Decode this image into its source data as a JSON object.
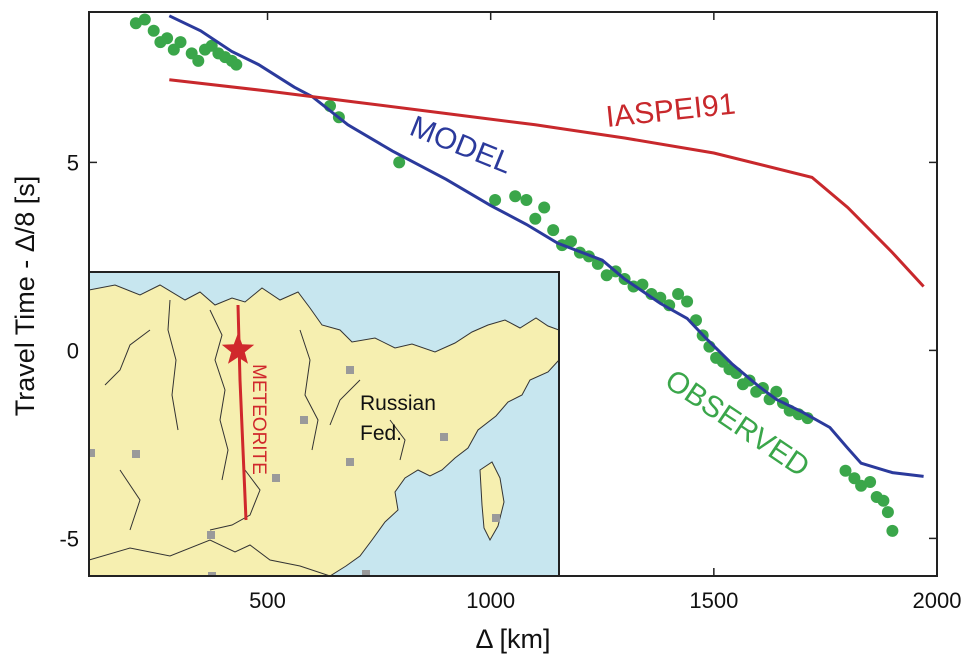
{
  "chart_data": {
    "type": "scatter",
    "xlabel": "Δ [km]",
    "ylabel": "Travel Time - Δ/8  [s]",
    "xlim": [
      100,
      2000
    ],
    "ylim": [
      -6,
      9
    ],
    "x_ticks": [
      500,
      1000,
      1500,
      2000
    ],
    "y_ticks": [
      -5,
      0,
      5
    ],
    "grid": false,
    "colors": {
      "iaspei": "#c8282c",
      "model": "#2b3a9c",
      "observed": "#3aa64a",
      "meteorite": "#d0282c",
      "map_land": "#f6efb0",
      "map_water": "#c7e6ef"
    },
    "series": [
      {
        "name": "IASPEI91",
        "kind": "line",
        "x": [
          280,
          500,
          700,
          900,
          1100,
          1300,
          1500,
          1720,
          1800,
          1900,
          1970
        ],
        "y": [
          7.2,
          6.9,
          6.6,
          6.3,
          6.0,
          5.65,
          5.25,
          4.6,
          3.8,
          2.6,
          1.7
        ]
      },
      {
        "name": "MODEL",
        "kind": "line",
        "x": [
          280,
          350,
          420,
          480,
          560,
          600,
          680,
          780,
          900,
          1000,
          1080,
          1150,
          1250,
          1300,
          1380,
          1440,
          1480,
          1540,
          1600,
          1640,
          1700,
          1760,
          1800,
          1830,
          1900,
          1970
        ],
        "y": [
          8.9,
          8.5,
          7.95,
          7.6,
          7.0,
          6.75,
          6.0,
          5.3,
          4.55,
          3.85,
          3.35,
          2.85,
          2.4,
          1.9,
          1.25,
          0.85,
          0.35,
          -0.35,
          -0.95,
          -1.3,
          -1.65,
          -2.05,
          -2.6,
          -3.0,
          -3.25,
          -3.35
        ]
      },
      {
        "name": "OBSERVED",
        "kind": "scatter",
        "x": [
          205,
          225,
          245,
          260,
          275,
          290,
          305,
          330,
          345,
          360,
          375,
          390,
          405,
          420,
          430,
          640,
          660,
          795,
          1010,
          1055,
          1080,
          1100,
          1120,
          1140,
          1160,
          1180,
          1200,
          1220,
          1240,
          1260,
          1280,
          1300,
          1320,
          1340,
          1360,
          1380,
          1400,
          1420,
          1440,
          1460,
          1475,
          1490,
          1505,
          1520,
          1535,
          1550,
          1565,
          1580,
          1595,
          1610,
          1625,
          1640,
          1655,
          1670,
          1690,
          1710,
          1795,
          1815,
          1830,
          1850,
          1865,
          1880,
          1890,
          1900
        ],
        "y": [
          8.7,
          8.8,
          8.5,
          8.2,
          8.3,
          8.0,
          8.2,
          7.9,
          7.7,
          8.0,
          8.1,
          7.9,
          7.8,
          7.7,
          7.6,
          6.5,
          6.2,
          5.0,
          4.0,
          4.1,
          4.0,
          3.5,
          3.8,
          3.2,
          2.8,
          2.9,
          2.6,
          2.5,
          2.3,
          2.0,
          2.1,
          1.9,
          1.7,
          1.75,
          1.5,
          1.4,
          1.2,
          1.5,
          1.3,
          0.8,
          0.4,
          0.1,
          -0.2,
          -0.3,
          -0.5,
          -0.6,
          -0.9,
          -0.8,
          -1.1,
          -1.0,
          -1.3,
          -1.1,
          -1.4,
          -1.6,
          -1.7,
          -1.8,
          -3.2,
          -3.4,
          -3.6,
          -3.5,
          -3.9,
          -4.0,
          -4.3,
          -4.8
        ]
      }
    ],
    "inset_map": {
      "labels": [
        "Russian",
        "Fed."
      ],
      "track_label": "METEORITE"
    }
  }
}
